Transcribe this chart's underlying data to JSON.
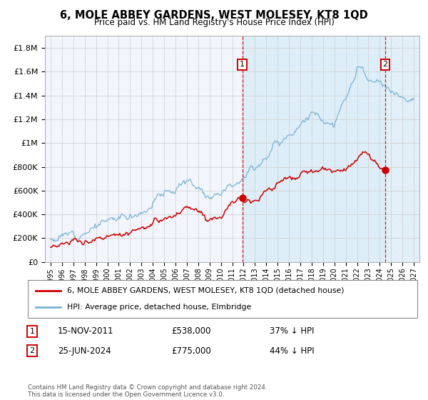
{
  "title": "6, MOLE ABBEY GARDENS, WEST MOLESEY, KT8 1QD",
  "subtitle": "Price paid vs. HM Land Registry's House Price Index (HPI)",
  "legend_line1": "6, MOLE ABBEY GARDENS, WEST MOLESEY, KT8 1QD (detached house)",
  "legend_line2": "HPI: Average price, detached house, Elmbridge",
  "annotation1_label": "1",
  "annotation1_date": "15-NOV-2011",
  "annotation1_price": "£538,000",
  "annotation1_pct": "37% ↓ HPI",
  "annotation1_year": 2011.88,
  "annotation1_value": 538000,
  "annotation2_label": "2",
  "annotation2_date": "25-JUN-2024",
  "annotation2_price": "£775,000",
  "annotation2_pct": "44% ↓ HPI",
  "annotation2_year": 2024.48,
  "annotation2_value": 775000,
  "hpi_color": "#7ab3d4",
  "price_color": "#cc0000",
  "hpi_fill_between": "#ddeef8",
  "hatch_fill": "#d8eaf5",
  "grid_color": "#cccccc",
  "background_color": "#ffffff",
  "plot_bg_color": "#f2f6fc",
  "ylim": [
    0,
    1900000
  ],
  "xlim": [
    1994.5,
    2027.5
  ],
  "yticks": [
    0,
    200000,
    400000,
    600000,
    800000,
    1000000,
    1200000,
    1400000,
    1600000,
    1800000
  ],
  "ytick_labels": [
    "£0",
    "£200K",
    "£400K",
    "£600K",
    "£800K",
    "£1M",
    "£1.2M",
    "£1.4M",
    "£1.6M",
    "£1.8M"
  ],
  "footer": "Contains HM Land Registry data © Crown copyright and database right 2024.\nThis data is licensed under the Open Government Licence v3.0."
}
